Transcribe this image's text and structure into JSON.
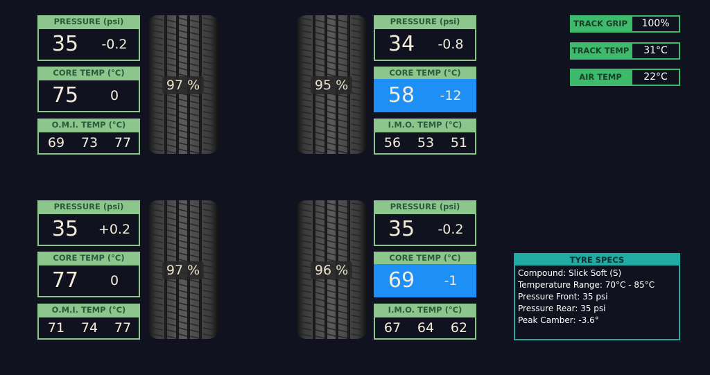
{
  "tyres": [
    {
      "pressure": {
        "header": "PRESSURE (psi)",
        "value": "35",
        "delta": "-0.2"
      },
      "core_temp": {
        "header": "CORE TEMP (°C)",
        "value": "75",
        "delta": "0",
        "highlight": false
      },
      "surface_temp": {
        "header": "O.M.I. TEMP (°C)",
        "values": [
          "69",
          "73",
          "77"
        ]
      },
      "wear": "97 %"
    },
    {
      "pressure": {
        "header": "PRESSURE (psi)",
        "value": "34",
        "delta": "-0.8"
      },
      "core_temp": {
        "header": "CORE TEMP (°C)",
        "value": "58",
        "delta": "-12",
        "highlight": true
      },
      "surface_temp": {
        "header": "I.M.O. TEMP (°C)",
        "values": [
          "56",
          "53",
          "51"
        ]
      },
      "wear": "95 %"
    },
    {
      "pressure": {
        "header": "PRESSURE (psi)",
        "value": "35",
        "delta": "+0.2"
      },
      "core_temp": {
        "header": "CORE TEMP (°C)",
        "value": "77",
        "delta": "0",
        "highlight": false
      },
      "surface_temp": {
        "header": "O.M.I. TEMP (°C)",
        "values": [
          "71",
          "74",
          "77"
        ]
      },
      "wear": "97 %"
    },
    {
      "pressure": {
        "header": "PRESSURE (psi)",
        "value": "35",
        "delta": "-0.2"
      },
      "core_temp": {
        "header": "CORE TEMP (°C)",
        "value": "69",
        "delta": "-1",
        "highlight": true
      },
      "surface_temp": {
        "header": "I.M.O. TEMP (°C)",
        "values": [
          "67",
          "64",
          "62"
        ]
      },
      "wear": "96 %"
    }
  ],
  "conditions": [
    {
      "label": "TRACK GRIP",
      "value": "100%"
    },
    {
      "label": "TRACK TEMP",
      "value": "31°C"
    },
    {
      "label": "AIR TEMP",
      "value": "22°C"
    }
  ],
  "specs": {
    "title": "TYRE SPECS",
    "lines": [
      "Compound:  Slick Soft (S)",
      "Temperature Range:  70°C - 85°C",
      "Pressure Front:  35 psi",
      "Pressure Rear:  35 psi",
      "Peak Camber:  -3.6°"
    ]
  }
}
